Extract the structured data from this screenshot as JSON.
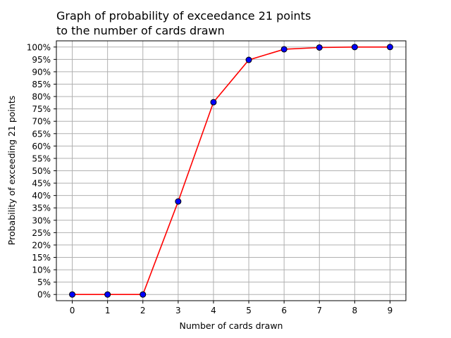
{
  "chart_data": {
    "type": "line",
    "title_lines": [
      "Graph of probability of exceedance 21 points",
      "to the number of cards drawn"
    ],
    "xlabel": "Number of cards drawn",
    "ylabel": "Probability of exceeding 21 points",
    "x": [
      0,
      1,
      2,
      3,
      4,
      5,
      6,
      7,
      8,
      9
    ],
    "series": [
      {
        "values": [
          0,
          0,
          0,
          37.6,
          77.7,
          94.8,
          99.1,
          99.8,
          99.98,
          100
        ],
        "line_color": "#ff0000",
        "marker_face": "#0000ff",
        "marker_edge": "#000000"
      }
    ],
    "xticks": [
      "0",
      "1",
      "2",
      "3",
      "4",
      "5",
      "6",
      "7",
      "8",
      "9"
    ],
    "yticks": [
      "0%",
      "5%",
      "10%",
      "15%",
      "20%",
      "25%",
      "30%",
      "35%",
      "40%",
      "45%",
      "50%",
      "55%",
      "60%",
      "65%",
      "70%",
      "75%",
      "80%",
      "85%",
      "90%",
      "95%",
      "100%"
    ],
    "xlim": [
      -0.45,
      9.45
    ],
    "ylim": [
      -2.5,
      102.5
    ],
    "grid": true
  }
}
